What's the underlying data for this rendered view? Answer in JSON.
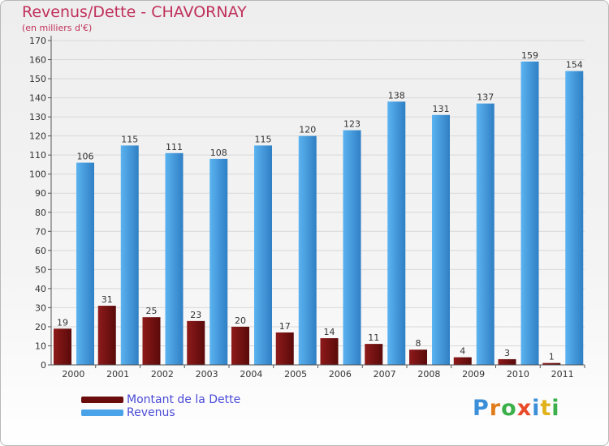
{
  "header": {
    "title": "Revenus/Dette - CHAVORNAY",
    "subtitle": "(en milliers d'€)"
  },
  "chart_data": {
    "type": "bar",
    "categories": [
      "2000",
      "2001",
      "2002",
      "2003",
      "2004",
      "2005",
      "2006",
      "2007",
      "2008",
      "2009",
      "2010",
      "2011"
    ],
    "series": [
      {
        "name": "Montant de la Dette",
        "color": "#7a1010",
        "values": [
          19,
          31,
          25,
          23,
          20,
          17,
          14,
          11,
          8,
          4,
          3,
          1
        ]
      },
      {
        "name": "Revenus",
        "color": "#4aa3e8",
        "values": [
          106,
          115,
          111,
          108,
          115,
          120,
          123,
          138,
          131,
          137,
          159,
          154
        ]
      }
    ],
    "ylim": [
      0,
      170
    ],
    "ytick_step": 10,
    "grid": true,
    "legend_position": "bottom-left"
  },
  "legend": {
    "items": [
      {
        "label": "Montant de la Dette",
        "color": "#6b0d0d"
      },
      {
        "label": "Revenus",
        "color": "#4aa3e8"
      }
    ]
  },
  "logo": {
    "letters": [
      {
        "ch": "P",
        "color": "#3b8fd8"
      },
      {
        "ch": "r",
        "color": "#e07c1c"
      },
      {
        "ch": "o",
        "color": "#3bb04a"
      },
      {
        "ch": "x",
        "color": "#e84a2a"
      },
      {
        "ch": "i",
        "color": "#3b8fd8"
      },
      {
        "ch": "t",
        "color": "#e0b21c"
      },
      {
        "ch": "i",
        "color": "#3bb04a"
      }
    ]
  }
}
